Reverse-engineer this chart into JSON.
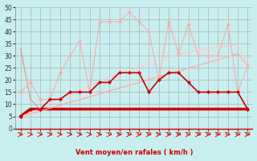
{
  "background_color": "#c8eef0",
  "grid_color": "#b0b0b0",
  "xlabel": "Vent moyen/en rafales ( km/h )",
  "x_values": [
    0,
    1,
    2,
    3,
    4,
    5,
    6,
    7,
    8,
    9,
    10,
    11,
    12,
    13,
    14,
    15,
    16,
    17,
    18,
    19,
    20,
    21,
    22,
    23
  ],
  "ylim": [
    0,
    50
  ],
  "yticks": [
    0,
    5,
    10,
    15,
    20,
    25,
    30,
    35,
    40,
    45,
    50
  ],
  "series": [
    {
      "name": "line_flat_dark",
      "y": [
        33,
        12,
        8,
        8,
        8,
        8,
        8,
        8,
        8,
        8,
        8,
        8,
        8,
        8,
        8,
        8,
        8,
        8,
        8,
        8,
        8,
        8,
        8,
        8
      ],
      "color": "#ff8888",
      "linewidth": 0.8,
      "marker": null,
      "linestyle": "-"
    },
    {
      "name": "line_flat_bottom",
      "y": [
        5,
        8,
        8,
        8,
        8,
        8,
        8,
        8,
        8,
        8,
        8,
        8,
        8,
        8,
        8,
        8,
        8,
        8,
        8,
        8,
        8,
        8,
        8,
        8
      ],
      "color": "#cc0000",
      "linewidth": 2.5,
      "marker": null,
      "linestyle": "-"
    },
    {
      "name": "trend_line_lower",
      "y": [
        5.0,
        6.0,
        7.2,
        8.4,
        9.6,
        10.8,
        11.9,
        13.1,
        14.3,
        15.5,
        16.7,
        17.8,
        19.0,
        20.2,
        21.4,
        22.5,
        23.7,
        24.9,
        26.1,
        27.2,
        28.4,
        29.6,
        30.8,
        26.0
      ],
      "color": "#ffaaaa",
      "linewidth": 0.9,
      "marker": null,
      "linestyle": "-"
    },
    {
      "name": "trend_line_upper",
      "y": [
        5.0,
        6.5,
        8.5,
        10.5,
        12.5,
        14.0,
        16.0,
        17.5,
        19.5,
        21.0,
        22.5,
        24.0,
        25.5,
        27.0,
        28.5,
        29.5,
        30.5,
        31.5,
        32.5,
        33.0,
        33.5,
        34.0,
        34.5,
        26.0
      ],
      "color": "#ffcccc",
      "linewidth": 0.9,
      "marker": null,
      "linestyle": "-"
    },
    {
      "name": "scatter_light_pink_top",
      "y": [
        15,
        19,
        12,
        12,
        23,
        30,
        36,
        15,
        44,
        44,
        44,
        48,
        44,
        40,
        20,
        44,
        31,
        43,
        30,
        30,
        30,
        43,
        15,
        26
      ],
      "color": "#ffaaaa",
      "linewidth": 0.8,
      "marker": "D",
      "markersize": 2,
      "linestyle": "-"
    },
    {
      "name": "scatter_dark_red_mid",
      "y": [
        5,
        8,
        8,
        12,
        12,
        15,
        15,
        15,
        19,
        19,
        23,
        23,
        23,
        15,
        20,
        23,
        23,
        19,
        15,
        15,
        15,
        15,
        15,
        8
      ],
      "color": "#cc0000",
      "linewidth": 1.2,
      "marker": "D",
      "markersize": 2,
      "linestyle": "-"
    }
  ],
  "arrow_color": "#cc0000"
}
